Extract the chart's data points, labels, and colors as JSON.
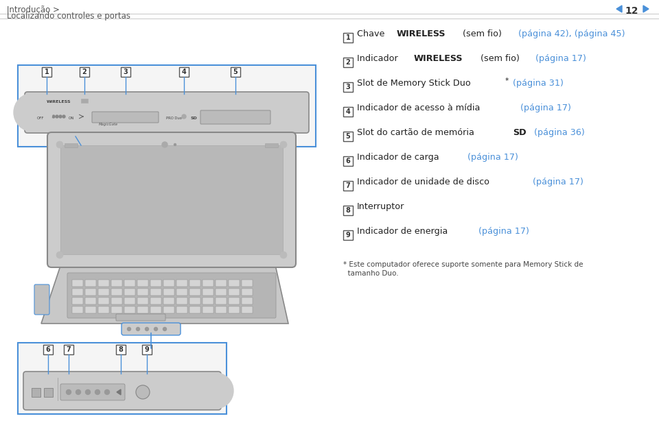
{
  "bg_color": "#ffffff",
  "header_line_color": "#cccccc",
  "header_text1": "Introdução >",
  "header_text2": "Localizando controles e portas",
  "header_page": "12",
  "nav_arrow_color": "#4a90d9",
  "border_color": "#4a90d9",
  "items": [
    {
      "num": "1",
      "text_parts": [
        {
          "text": "Chave ",
          "bold": false,
          "color": "#222222"
        },
        {
          "text": "WIRELESS",
          "bold": true,
          "color": "#222222"
        },
        {
          "text": " (sem fio) ",
          "bold": false,
          "color": "#222222"
        },
        {
          "text": "(página 42), (página 45)",
          "bold": false,
          "color": "#4a90d9"
        }
      ]
    },
    {
      "num": "2",
      "text_parts": [
        {
          "text": "Indicador ",
          "bold": false,
          "color": "#222222"
        },
        {
          "text": "WIRELESS",
          "bold": true,
          "color": "#222222"
        },
        {
          "text": " (sem fio) ",
          "bold": false,
          "color": "#222222"
        },
        {
          "text": "(página 17)",
          "bold": false,
          "color": "#4a90d9"
        }
      ]
    },
    {
      "num": "3",
      "text_parts": [
        {
          "text": "Slot de Memory Stick Duo",
          "bold": false,
          "color": "#222222"
        },
        {
          "text": "*",
          "bold": false,
          "color": "#222222",
          "superscript": true
        },
        {
          "text": " ",
          "bold": false,
          "color": "#222222"
        },
        {
          "text": "(página 31)",
          "bold": false,
          "color": "#4a90d9"
        }
      ]
    },
    {
      "num": "4",
      "text_parts": [
        {
          "text": "Indicador de acesso à mídia ",
          "bold": false,
          "color": "#222222"
        },
        {
          "text": "(página 17)",
          "bold": false,
          "color": "#4a90d9"
        }
      ]
    },
    {
      "num": "5",
      "text_parts": [
        {
          "text": "Slot do cartão de memória ",
          "bold": false,
          "color": "#222222"
        },
        {
          "text": "SD",
          "bold": true,
          "color": "#222222"
        },
        {
          "text": " ",
          "bold": false,
          "color": "#222222"
        },
        {
          "text": "(página 36)",
          "bold": false,
          "color": "#4a90d9"
        }
      ]
    },
    {
      "num": "6",
      "text_parts": [
        {
          "text": "Indicador de carga ",
          "bold": false,
          "color": "#222222"
        },
        {
          "text": "(página 17)",
          "bold": false,
          "color": "#4a90d9"
        }
      ]
    },
    {
      "num": "7",
      "text_parts": [
        {
          "text": "Indicador de unidade de disco ",
          "bold": false,
          "color": "#222222"
        },
        {
          "text": "(página 17)",
          "bold": false,
          "color": "#4a90d9"
        }
      ]
    },
    {
      "num": "8",
      "text_parts": [
        {
          "text": "Interruptor",
          "bold": false,
          "color": "#222222"
        }
      ]
    },
    {
      "num": "9",
      "text_parts": [
        {
          "text": "Indicador de energia ",
          "bold": false,
          "color": "#222222"
        },
        {
          "text": "(página 17)",
          "bold": false,
          "color": "#4a90d9"
        }
      ]
    }
  ],
  "footnote_line1": "* Este computador oferece suporte somente para Memory Stick de",
  "footnote_line2": "  tamanho Duo.",
  "box_border": "#4a90d9",
  "top_box_nums": [
    "1",
    "2",
    "3",
    "4",
    "5"
  ],
  "bot_box_nums": [
    "6",
    "7",
    "8",
    "9"
  ]
}
